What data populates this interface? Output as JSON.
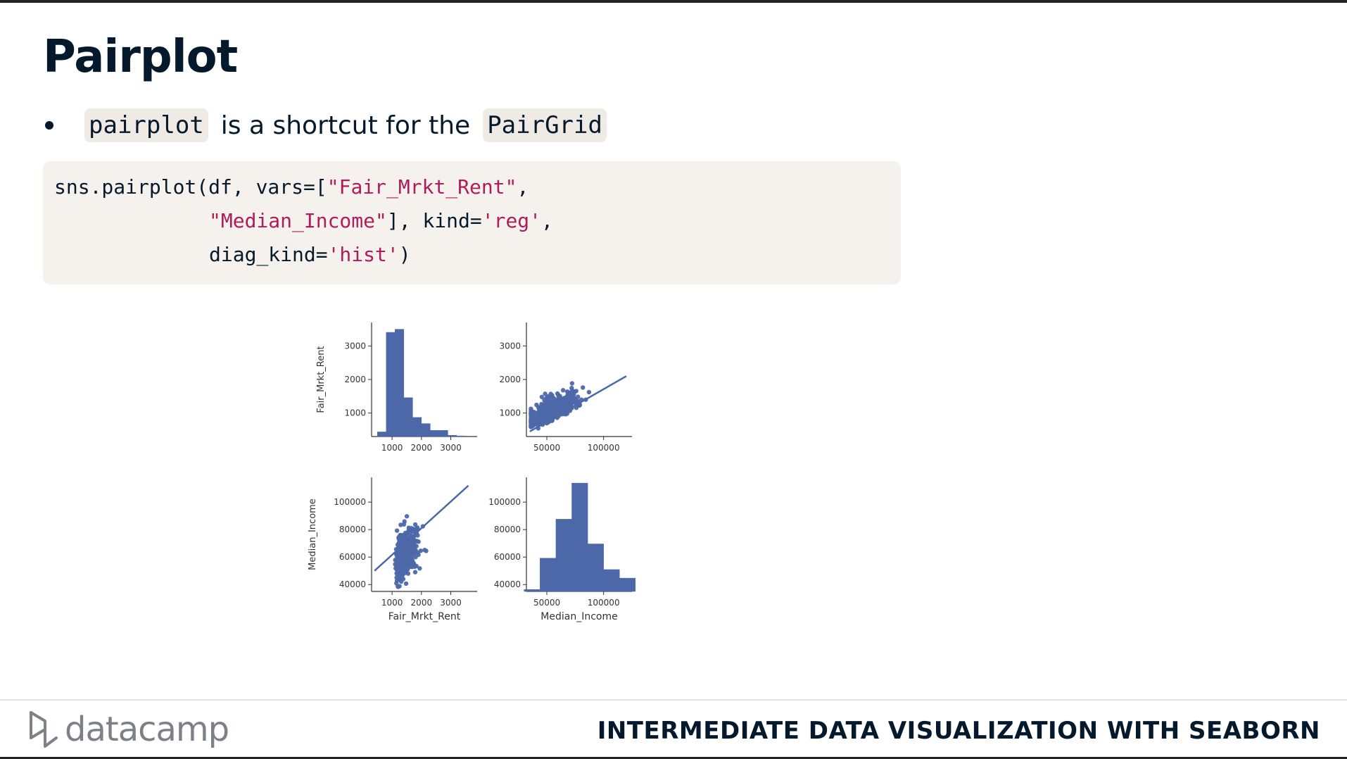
{
  "slide": {
    "title": "Pairplot",
    "bullet": {
      "code1": "pairplot",
      "text": "is a shortcut for the",
      "code2": "PairGrid"
    }
  },
  "code": {
    "line1_pre": "sns.pairplot(df, vars=[",
    "line1_str": "\"Fair_Mrkt_Rent\"",
    "line1_post": ",",
    "line2_str1": "\"Median_Income\"",
    "line2_mid": "], kind=",
    "line2_str2": "'reg'",
    "line2_post": ",",
    "line3_pre": "diag_kind=",
    "line3_str": "'hist'",
    "line3_post": ")"
  },
  "footer": {
    "logo_text": "datacamp",
    "course_title": "INTERMEDIATE DATA VISUALIZATION WITH SEABORN"
  },
  "colors": {
    "accent_string": "#b01c5b",
    "plot_blue": "#4c68a9",
    "dark_navy": "#05192d"
  },
  "chart_data": {
    "type": "pairplot",
    "variables": [
      "Fair_Mrkt_Rent",
      "Median_Income"
    ],
    "panels": [
      {
        "row": 0,
        "col": 0,
        "type": "histogram",
        "ylabel": "Fair_Mrkt_Rent",
        "xticks": [
          "1000",
          "2000",
          "3000"
        ],
        "yticks": [
          "1000",
          "2000",
          "3000"
        ],
        "bins": [
          {
            "x0": 500,
            "x1": 800,
            "count": 150
          },
          {
            "x0": 800,
            "x1": 1100,
            "count": 3380
          },
          {
            "x0": 1100,
            "x1": 1400,
            "count": 3480
          },
          {
            "x0": 1400,
            "x1": 1700,
            "count": 1260
          },
          {
            "x0": 1700,
            "x1": 2000,
            "count": 620
          },
          {
            "x0": 2000,
            "x1": 2300,
            "count": 420
          },
          {
            "x0": 2300,
            "x1": 2600,
            "count": 200
          },
          {
            "x0": 2600,
            "x1": 2900,
            "count": 200
          },
          {
            "x0": 2900,
            "x1": 3200,
            "count": 40
          },
          {
            "x0": 3200,
            "x1": 3500,
            "count": 20
          }
        ]
      },
      {
        "row": 0,
        "col": 1,
        "type": "regplot",
        "xticks": [
          "50000",
          "100000"
        ],
        "yticks": [
          "1000",
          "2000",
          "3000"
        ],
        "fit": {
          "x0": 35000,
          "y0": 450,
          "x1": 120000,
          "y1": 2100
        }
      },
      {
        "row": 1,
        "col": 0,
        "type": "regplot",
        "ylabel": "Median_Income",
        "xlabel": "Fair_Mrkt_Rent",
        "xticks": [
          "1000",
          "2000",
          "3000"
        ],
        "yticks": [
          "40000",
          "60000",
          "80000",
          "100000"
        ],
        "fit": {
          "x0": 400,
          "y0": 50000,
          "x1": 3600,
          "y1": 112000
        }
      },
      {
        "row": 1,
        "col": 1,
        "type": "histogram",
        "xlabel": "Median_Income",
        "yticks": [
          "40000",
          "60000",
          "80000",
          "100000"
        ],
        "xticks": [
          "50000",
          "100000"
        ],
        "bins": [
          {
            "x0": 30000,
            "x1": 44000,
            "count": 100
          },
          {
            "x0": 44000,
            "x1": 58000,
            "count": 1750
          },
          {
            "x0": 58000,
            "x1": 72000,
            "count": 3800
          },
          {
            "x0": 72000,
            "x1": 86000,
            "count": 5700
          },
          {
            "x0": 86000,
            "x1": 100000,
            "count": 2500
          },
          {
            "x0": 100000,
            "x1": 114000,
            "count": 1150
          },
          {
            "x0": 114000,
            "x1": 128000,
            "count": 700
          }
        ]
      }
    ]
  }
}
